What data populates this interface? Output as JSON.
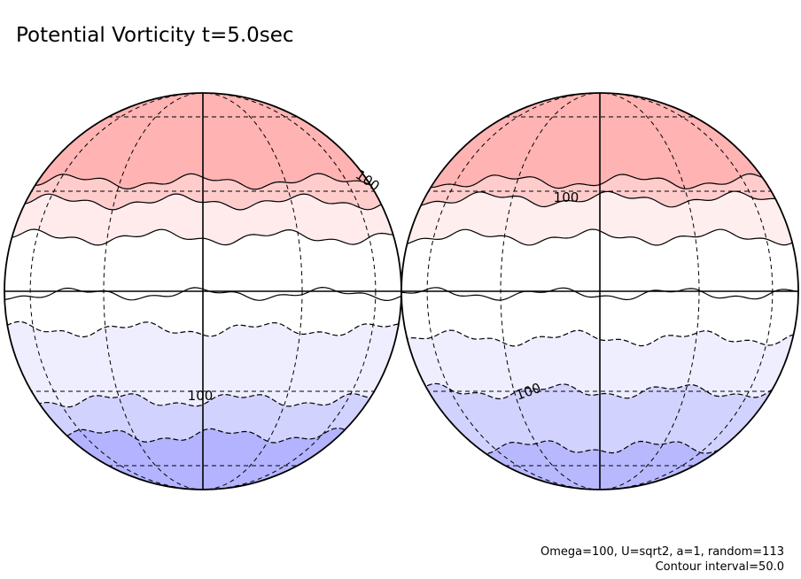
{
  "header": {
    "title": "Potential Vorticity t=5.0sec"
  },
  "globes": [
    {
      "contour_labels": [
        "100",
        "100"
      ]
    },
    {
      "contour_labels": [
        "100",
        "100"
      ]
    }
  ],
  "footer": {
    "parameters": "Omega=100, U=sqrt2, a=1, random=113",
    "contour_interval": "Contour interval=50.0"
  }
}
